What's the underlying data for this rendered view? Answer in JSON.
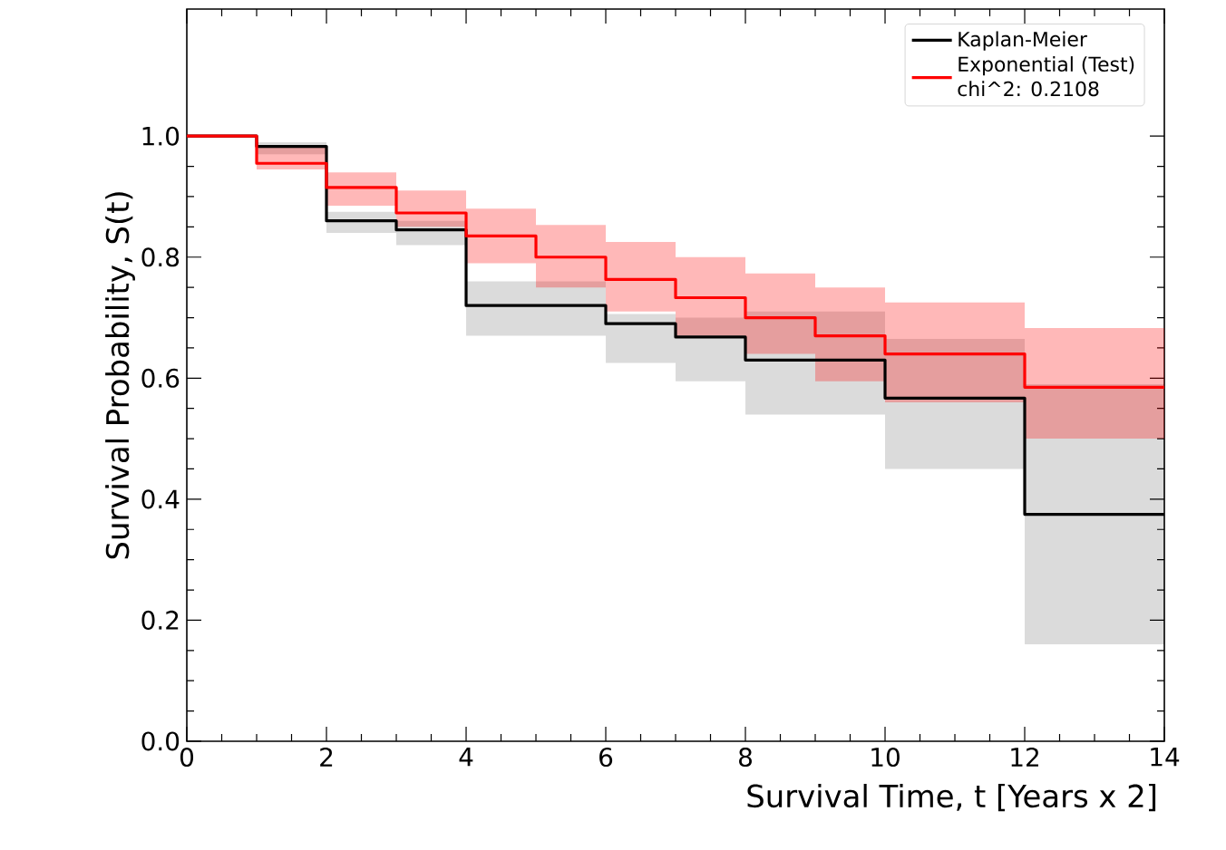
{
  "chart_data": {
    "type": "step",
    "xlabel": "Survival Time, t [Years x 2]",
    "ylabel": "Survival Probability, S(t)",
    "xlim": [
      0,
      14
    ],
    "ylim": [
      0,
      1.21
    ],
    "xticks": [
      0,
      2,
      4,
      6,
      8,
      10,
      12,
      14
    ],
    "yticks": [
      {
        "value": 0,
        "label": "0.0"
      },
      {
        "value": 0.2,
        "label": "0.2"
      },
      {
        "value": 0.4,
        "label": "0.4"
      },
      {
        "value": 0.6,
        "label": "0.6"
      },
      {
        "value": 0.8,
        "label": "0.8"
      },
      {
        "value": 1,
        "label": "1.0"
      }
    ],
    "legend": "top right",
    "grid": false,
    "marker": "none",
    "annotations": [
      "chi^2: 0.2108"
    ],
    "series": [
      {
        "name": "Kaplan-Meier",
        "color": "#000000",
        "x": [
          0,
          1,
          2,
          3,
          4,
          6,
          7,
          8,
          10,
          12,
          14
        ],
        "values": [
          1.0,
          0.983,
          0.86,
          0.845,
          0.72,
          0.69,
          0.668,
          0.63,
          0.567,
          0.375,
          0.375
        ],
        "lower": [
          1.0,
          0.97,
          0.84,
          0.82,
          0.67,
          0.625,
          0.595,
          0.54,
          0.45,
          0.16,
          0.16
        ],
        "upper": [
          1.0,
          0.99,
          0.875,
          0.86,
          0.76,
          0.706,
          0.7,
          0.71,
          0.665,
          0.59,
          0.59
        ]
      },
      {
        "name": "Exponential (Test)",
        "color": "#ff0000",
        "x": [
          0,
          1,
          2,
          3,
          4,
          5,
          6,
          7,
          8,
          9,
          10,
          12,
          14
        ],
        "values": [
          1.0,
          0.955,
          0.915,
          0.873,
          0.835,
          0.8,
          0.763,
          0.733,
          0.7,
          0.67,
          0.64,
          0.585,
          0.585
        ],
        "lower": [
          1.0,
          0.945,
          0.885,
          0.85,
          0.79,
          0.75,
          0.71,
          0.67,
          0.64,
          0.595,
          0.56,
          0.5,
          0.5
        ],
        "upper": [
          1.0,
          0.985,
          0.94,
          0.91,
          0.88,
          0.853,
          0.825,
          0.8,
          0.773,
          0.75,
          0.725,
          0.683,
          0.683
        ]
      }
    ]
  }
}
